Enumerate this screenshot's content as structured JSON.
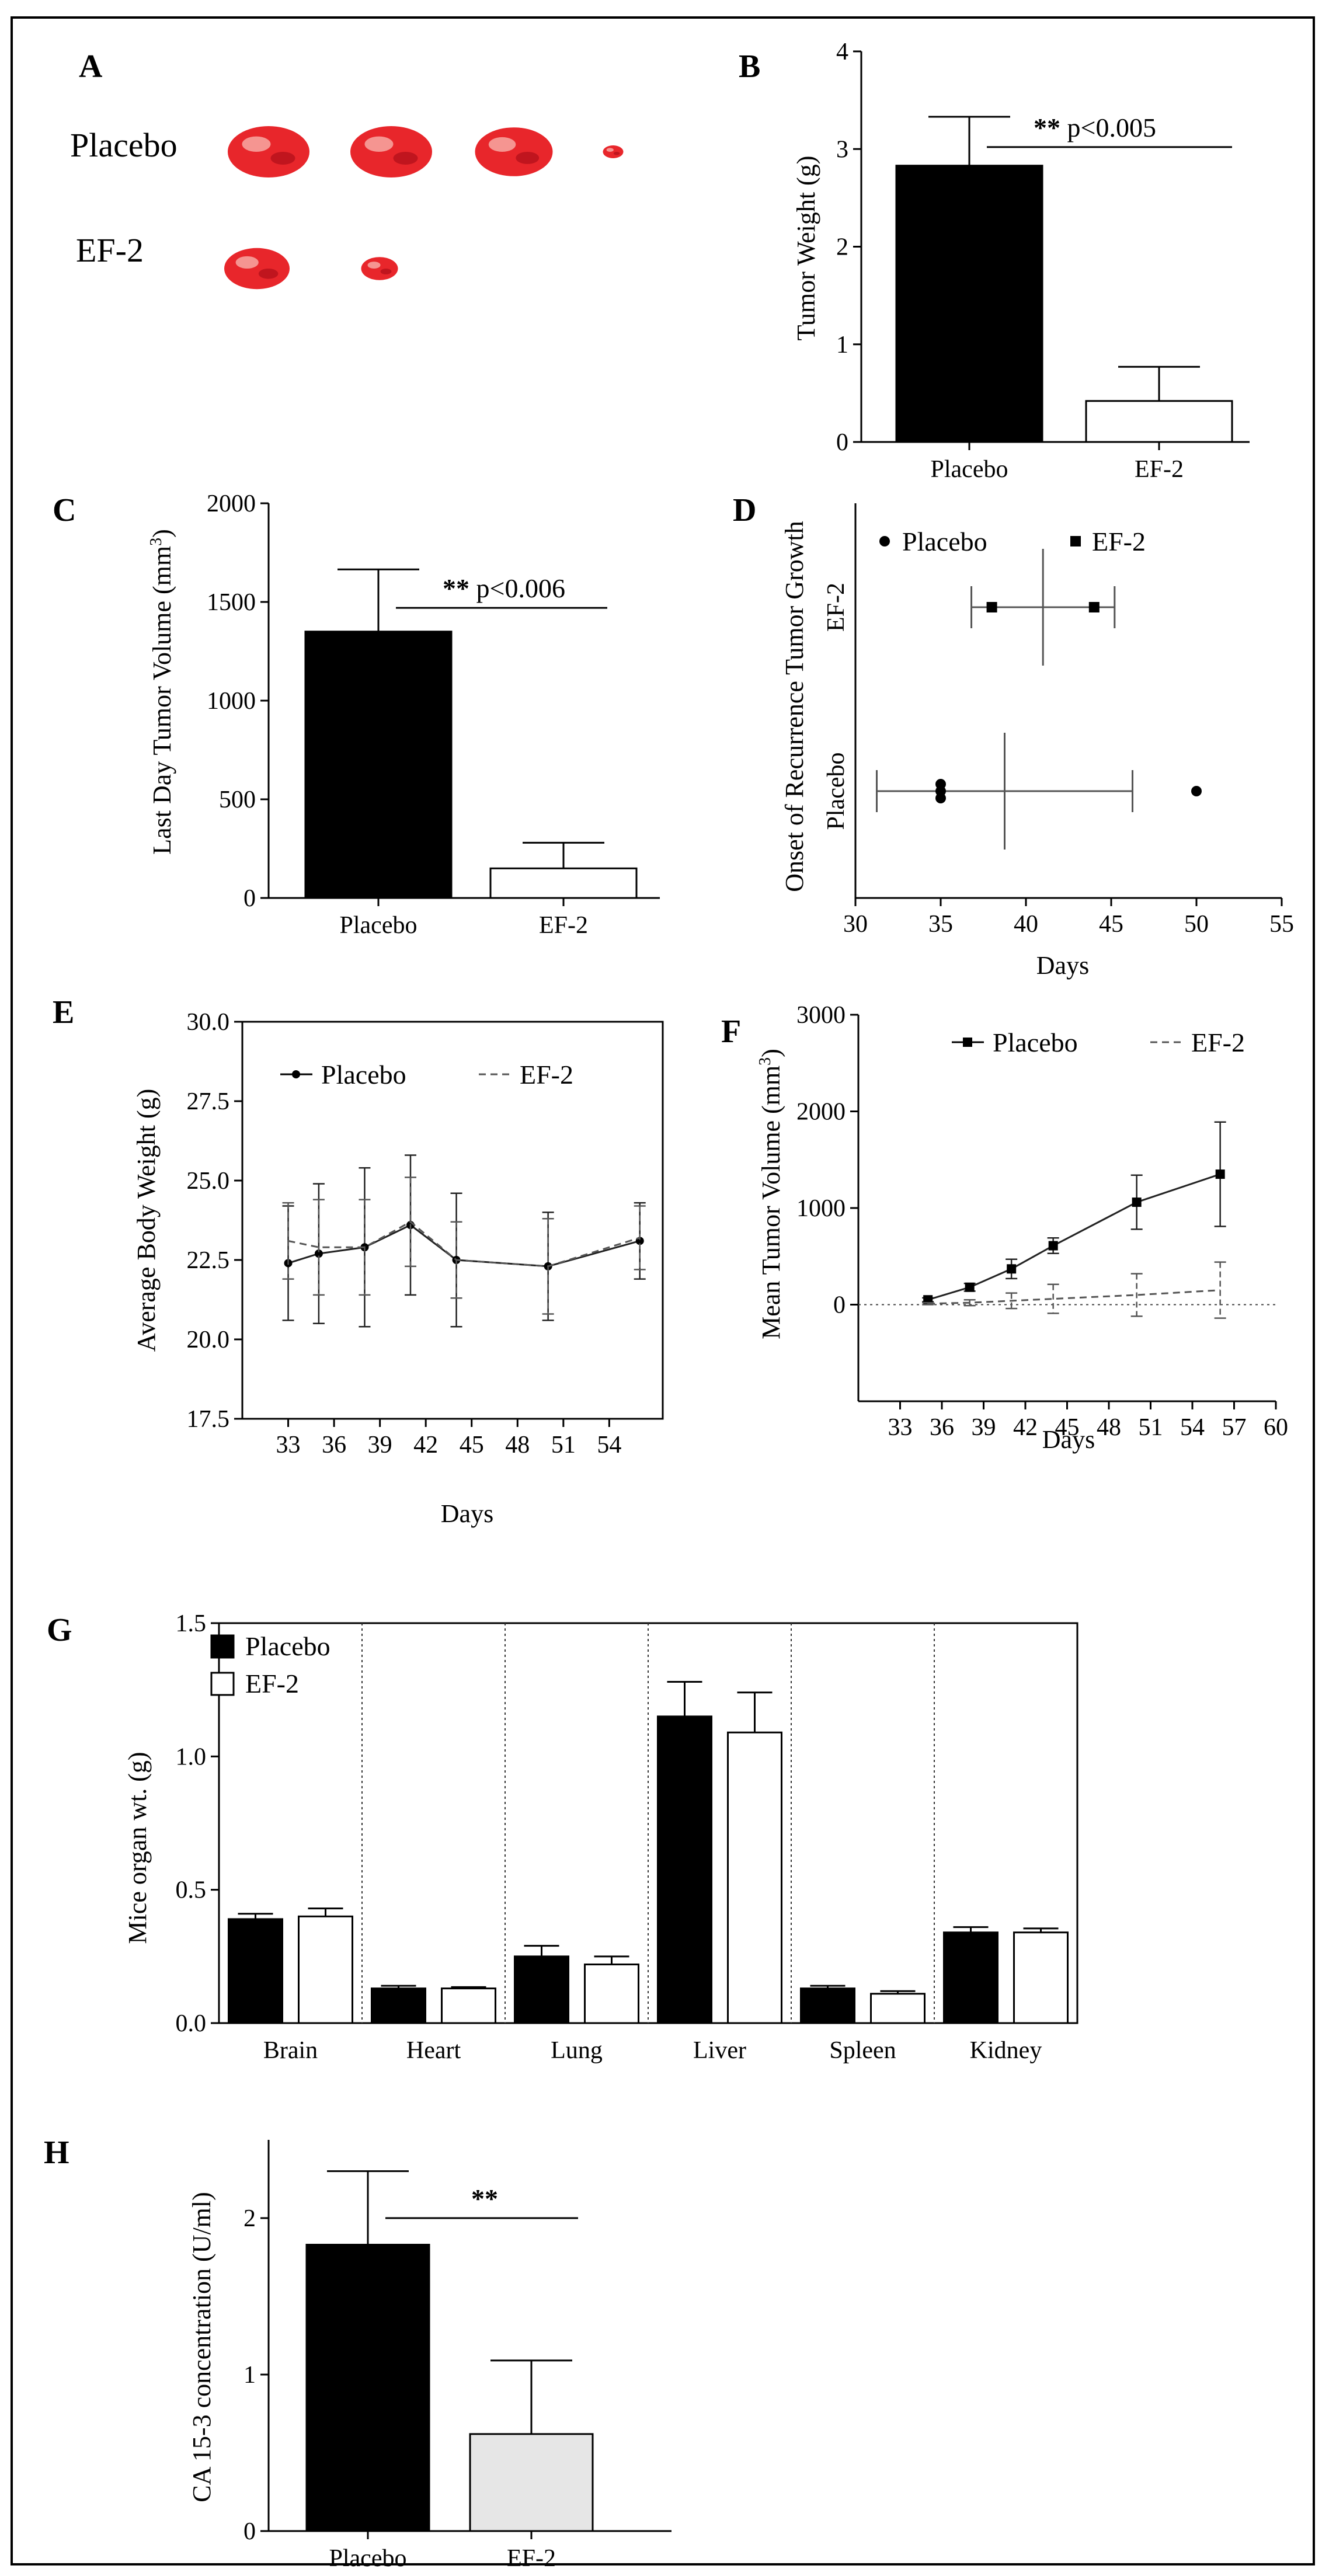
{
  "colors": {
    "placebo": "#000000",
    "ef2": "#ffffff",
    "ef2_h": "#e6e6e6",
    "tumor": "#e8262b",
    "border": "#000000"
  },
  "chart_data": [
    {
      "panel": "A",
      "type": "photo",
      "rows": [
        "Placebo",
        "EF-2"
      ],
      "counts": [
        4,
        2
      ],
      "sizes": [
        [
          1,
          1,
          0.95,
          0.25
        ],
        [
          0.8,
          0.45
        ]
      ]
    },
    {
      "panel": "B",
      "type": "bar",
      "categories": [
        "Placebo",
        "EF-2"
      ],
      "values": [
        2.83,
        0.42
      ],
      "errors": [
        0.5,
        0.35
      ],
      "ylabel": "Tumor Weight (g)",
      "ylim": [
        0,
        4
      ],
      "yticks": [
        0,
        1,
        2,
        3,
        4
      ],
      "yticklabels": [
        "0",
        "1",
        "2",
        "3",
        "4"
      ],
      "significance": {
        "stars": "**",
        "text": "p<0.005",
        "y": 3.02
      }
    },
    {
      "panel": "C",
      "type": "bar",
      "categories": [
        "Placebo",
        "EF-2"
      ],
      "values": [
        1350,
        150
      ],
      "errors": [
        315,
        130
      ],
      "ylabel_main": "Last Day Tumor Volume (mm",
      "ylabel_sup": "3",
      "ylabel_end": ")",
      "ylim": [
        0,
        2000
      ],
      "yticks": [
        0,
        500,
        1000,
        1500,
        2000
      ],
      "yticklabels": [
        "0",
        "500",
        "1000",
        "1500",
        "2000"
      ],
      "significance": {
        "stars": "**",
        "text": "p<0.006",
        "y": 1470
      }
    },
    {
      "panel": "D",
      "type": "scatter",
      "categories": [
        "Placebo",
        "EF-2"
      ],
      "xlabel": "Days",
      "ylabel": "Onset of Recurrence Tumor Growth",
      "xlim": [
        30,
        55
      ],
      "xticks": [
        30,
        35,
        40,
        45,
        50,
        55
      ],
      "xticklabels": [
        "30",
        "35",
        "40",
        "45",
        "50",
        "55"
      ],
      "series": [
        {
          "name": "Placebo",
          "marker": "circle",
          "category_index": 0,
          "points": [
            {
              "x": 35,
              "dy": 0.06
            },
            {
              "x": 35,
              "dy": 0
            },
            {
              "x": 35,
              "dy": -0.06
            },
            {
              "x": 50,
              "dy": 0
            }
          ],
          "mean": 38.75,
          "sd": 7.5
        },
        {
          "name": "EF-2",
          "marker": "square",
          "category_index": 1,
          "points": [
            {
              "x": 38,
              "dy": 0
            },
            {
              "x": 44,
              "dy": 0
            }
          ],
          "mean": 41,
          "sd": 4.2
        }
      ],
      "legend": [
        "Placebo",
        "EF-2"
      ]
    },
    {
      "panel": "E",
      "type": "line",
      "xlabel": "Days",
      "ylabel": "Average Body Weight (g)",
      "xlim": [
        30,
        57.5
      ],
      "xticks": [
        33,
        36,
        39,
        42,
        45,
        48,
        51,
        54
      ],
      "xticklabels": [
        "33",
        "36",
        "39",
        "42",
        "45",
        "48",
        "51",
        "54"
      ],
      "ylim": [
        17.5,
        30
      ],
      "yticks": [
        17.5,
        20,
        22.5,
        25,
        27.5,
        30
      ],
      "yticklabels": [
        "17.5",
        "20.0",
        "22.5",
        "25.0",
        "27.5",
        "30.0"
      ],
      "series": [
        {
          "name": "Placebo",
          "style": "solid",
          "x": [
            33,
            35,
            38,
            41,
            44,
            50,
            56
          ],
          "y": [
            22.4,
            22.7,
            22.9,
            23.6,
            22.5,
            22.3,
            23.1
          ],
          "err": [
            1.8,
            2.2,
            2.5,
            2.2,
            2.1,
            1.7,
            1.2
          ]
        },
        {
          "name": "EF-2",
          "style": "dashed",
          "x": [
            33,
            35,
            38,
            41,
            44,
            50,
            56
          ],
          "y": [
            23.1,
            22.9,
            22.9,
            23.7,
            22.5,
            22.3,
            23.2
          ],
          "err": [
            1.2,
            1.5,
            1.5,
            1.4,
            1.2,
            1.5,
            1.0
          ]
        }
      ]
    },
    {
      "panel": "F",
      "type": "line",
      "xlabel": "Days",
      "ylabel_main": "Mean Tumor Volume (mm",
      "ylabel_sup": "3",
      "ylabel_end": ")",
      "xlim": [
        30,
        60
      ],
      "xticks": [
        33,
        36,
        39,
        42,
        45,
        48,
        51,
        54,
        57,
        60
      ],
      "xticklabels": [
        "33",
        "36",
        "39",
        "42",
        "45",
        "48",
        "51",
        "54",
        "57",
        "60"
      ],
      "ylim": [
        -1000,
        3000
      ],
      "yticks": [
        0,
        1000,
        2000,
        3000
      ],
      "yticklabels": [
        "0",
        "1000",
        "2000",
        "3000"
      ],
      "zero_line": true,
      "series": [
        {
          "name": "Placebo",
          "style": "solid",
          "marker": "square",
          "x": [
            35,
            38,
            41,
            44,
            50,
            56
          ],
          "y": [
            50,
            180,
            370,
            610,
            1060,
            1350
          ],
          "err": [
            20,
            40,
            100,
            80,
            280,
            540
          ]
        },
        {
          "name": "EF-2",
          "style": "dashed",
          "marker": "none",
          "x": [
            35,
            38,
            41,
            44,
            50,
            56
          ],
          "y": [
            10,
            20,
            40,
            60,
            100,
            150
          ],
          "err": [
            10,
            30,
            80,
            150,
            220,
            290
          ]
        }
      ]
    },
    {
      "panel": "G",
      "type": "bar",
      "categories": [
        "Brain",
        "Heart",
        "Lung",
        "Liver",
        "Spleen",
        "Kidney"
      ],
      "series": [
        {
          "name": "Placebo",
          "values": [
            0.39,
            0.13,
            0.25,
            1.15,
            0.13,
            0.34
          ],
          "errors": [
            0.02,
            0.01,
            0.04,
            0.13,
            0.01,
            0.02
          ]
        },
        {
          "name": "EF-2",
          "values": [
            0.4,
            0.13,
            0.22,
            1.09,
            0.11,
            0.34
          ],
          "errors": [
            0.03,
            0.005,
            0.03,
            0.15,
            0.01,
            0.015
          ]
        }
      ],
      "ylabel": "Mice organ wt. (g)",
      "ylim": [
        0,
        1.5
      ],
      "yticks": [
        0,
        0.5,
        1.0,
        1.5
      ],
      "yticklabels": [
        "0.0",
        "0.5",
        "1.0",
        "1.5"
      ],
      "legend": [
        "Placebo",
        "EF-2"
      ]
    },
    {
      "panel": "H",
      "type": "bar",
      "categories": [
        "Placebo",
        "EF-2"
      ],
      "values": [
        1.83,
        0.62
      ],
      "errors": [
        0.47,
        0.47
      ],
      "ylabel": "CA 15-3 concentration (U/ml)",
      "ylim": [
        0,
        2.5
      ],
      "yticks": [
        0,
        1,
        2
      ],
      "yticklabels": [
        "0",
        "1",
        "2"
      ],
      "significance": {
        "stars": "**",
        "text": "",
        "y": 2.0
      }
    }
  ]
}
